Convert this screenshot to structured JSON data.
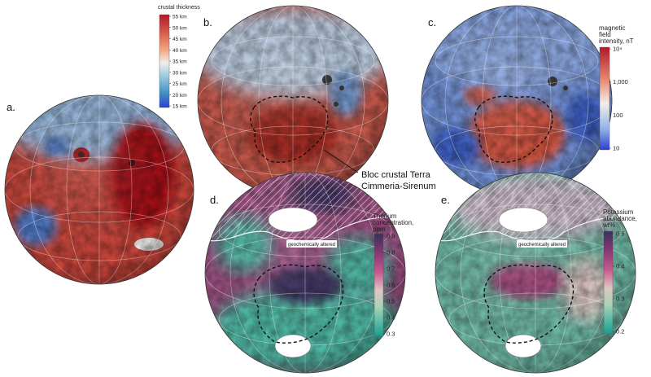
{
  "panels": [
    {
      "id": "a",
      "label": "a."
    },
    {
      "id": "b",
      "label": "b."
    },
    {
      "id": "c",
      "label": "c."
    },
    {
      "id": "d",
      "label": "d."
    },
    {
      "id": "e",
      "label": "e."
    }
  ],
  "annotation": {
    "line1": "Bloc crustal Terra",
    "line2": "Cimmeria-Sirenum"
  },
  "altered_label": "geochemically altered",
  "colorbars": {
    "crust": {
      "title": "crustal thickness",
      "ticks": [
        "55 km",
        "50 km",
        "45 km",
        "40 km",
        "35 km",
        "30 km",
        "25 km",
        "20 km",
        "15 km"
      ],
      "colors": [
        "#b2182b",
        "#d6604d",
        "#f4a582",
        "#f2efe9",
        "#92c5de",
        "#4393c3",
        "#2166ac"
      ]
    },
    "magnetic": {
      "title": [
        "magnetic",
        "field",
        "intensity, nT"
      ],
      "ticks": [
        "10⁴",
        "1,000",
        "100",
        "10"
      ],
      "colors": [
        "#b2182b",
        "#e8826a",
        "#f2efe9",
        "#8fb2e8",
        "#2c3fd0"
      ]
    },
    "thorium": {
      "title": [
        "Thorium",
        "concentration,",
        "ppm"
      ],
      "ticks": [
        "0.9",
        "0.8",
        "0.7",
        "0.6",
        "0.5",
        "0.4",
        "0.3"
      ],
      "colors": [
        "#3b2f5e",
        "#8a3a74",
        "#c85b8e",
        "#dcc6c2",
        "#a6d3b7",
        "#4fb8a4",
        "#1d9c92"
      ]
    },
    "potassium": {
      "title": [
        "Potassium",
        "abundance,",
        "wt%"
      ],
      "ticks": [
        "0.5",
        "0.4",
        "0.3",
        "0.2"
      ],
      "colors": [
        "#3b2f5e",
        "#8a3a74",
        "#c85b8e",
        "#dcc6c2",
        "#a6d3b7",
        "#4fb8a4",
        "#1d9c92"
      ]
    }
  },
  "globe_colors": {
    "a": {
      "base": "#c7453a",
      "north": "#93b3d8",
      "accent": "#a50f15",
      "cool": "#4e79c7"
    },
    "b": {
      "base": "#c4574a",
      "north": "#b9cbe0",
      "accent": "#a52a22",
      "cool": "#6f95c9"
    },
    "c": {
      "base": "#6f8fd6",
      "north": "#8aa6e0",
      "accent": "#d0533f",
      "cool": "#3d5fc4"
    },
    "d": {
      "base": "#9c4f82",
      "north": "#c9b7c6",
      "accent": "#3b2f5e",
      "cool": "#4fb8a4"
    },
    "e": {
      "base": "#6fb9a6",
      "north": "#c9b7c6",
      "accent": "#a4447a",
      "cool": "#3fa996"
    }
  }
}
